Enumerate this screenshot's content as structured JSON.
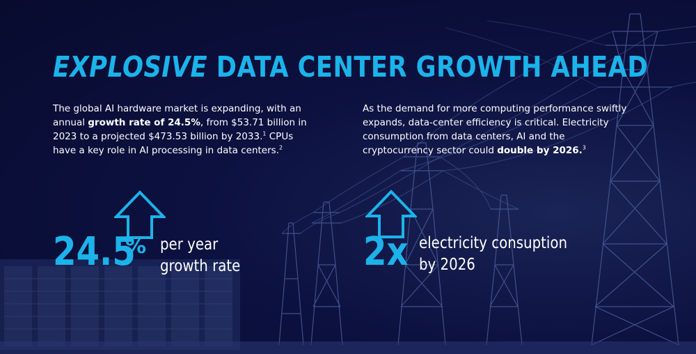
{
  "title": {
    "emphasis": "EXPLOSIVE",
    "rest": " DATA CENTER GROWTH AHEAD"
  },
  "left_paragraph": {
    "t1": "The global AI hardware market is expanding, with an annual ",
    "b1": "growth rate of 24.5%",
    "t2": ", from $53.71 billion in 2023 to a projected $473.53 billion by 2033.",
    "sup1": "1",
    "t3": " CPUs have a key role in AI processing in data centers.",
    "sup2": "2"
  },
  "right_paragraph": {
    "t1": "As the demand for more computing performance swiftly expands, data-center efficiency is critical. Electricity consumption from data centers, AI and the cryptocurrency sector could ",
    "b1": "double by 2026.",
    "sup1": "3"
  },
  "stat_growth": {
    "value": "24.5",
    "unit": "%",
    "label_line1": "per year",
    "label_line2": "growth rate"
  },
  "stat_electricity": {
    "value": "2x",
    "label_line1": "electricity consuption",
    "label_line2": "by 2026"
  },
  "colors": {
    "accent": "#1bb3ea",
    "background": "#0a0e33",
    "text": "#ffffff",
    "towers": "#4a5a99"
  },
  "icons": [
    "up-arrow-outline-icon",
    "up-arrow-outline-icon"
  ]
}
